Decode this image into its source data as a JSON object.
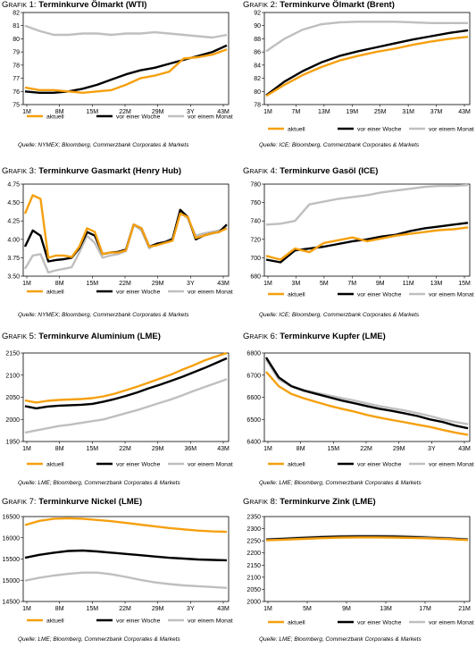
{
  "source_notes": [
    "Quelle: NYMEX; Bloomberg, Commerzbank Corporates & Markets",
    "Quelle: ICE; Bloomberg, Commerzbank Corporates & Markets",
    "Quelle: NYMEX; Bloomberg, Commerzbank Corporates & Markets",
    "Quelle: ICE; Bloomberg, Commerzbank Corporates & Markets",
    "Quelle: LME; Bloomberg, Commerzbank Corporates & Markets",
    "Quelle: LME; Bloomberg, Commerzbank Corporates & Markets",
    "Quelle: LME; Bloomberg, Commerzbank Corporates & Markets",
    "Quelle: LME; Bloomberg, Commerzbank Corporates & Markets"
  ],
  "colors": {
    "aktuell": "#f5a00f",
    "vor einer Woche": "#000000",
    "vor einem Monat": "#bfbfbf"
  },
  "chart_data": [
    {
      "type": "line",
      "prefix": "Grafik 1:",
      "title": "Terminkurve Ölmarkt (WTI)",
      "ylim": [
        75,
        82
      ],
      "yticks": [
        75,
        76,
        77,
        78,
        79,
        80,
        81,
        82
      ],
      "xlabels": [
        "1M",
        "8M",
        "15M",
        "22M",
        "29M",
        "3Y",
        "43M"
      ],
      "legend": "bottom",
      "series": [
        {
          "name": "aktuell",
          "values": [
            76.3,
            76.1,
            76.1,
            76.0,
            75.9,
            76.0,
            76.1,
            76.5,
            77.0,
            77.2,
            77.5,
            78.5,
            78.6,
            78.8,
            79.2
          ]
        },
        {
          "name": "vor einer Woche",
          "values": [
            76.0,
            75.9,
            75.9,
            76.0,
            76.2,
            76.5,
            76.9,
            77.3,
            77.6,
            77.8,
            78.1,
            78.4,
            78.7,
            79.0,
            79.5
          ]
        },
        {
          "name": "vor einem Monat",
          "values": [
            81.0,
            80.6,
            80.3,
            80.3,
            80.4,
            80.4,
            80.3,
            80.4,
            80.4,
            80.5,
            80.4,
            80.3,
            80.2,
            80.1,
            80.3
          ]
        }
      ]
    },
    {
      "type": "line",
      "prefix": "Grafik 2:",
      "title": "Terminkurve Ölmarkt (Brent)",
      "ylim": [
        78,
        92
      ],
      "yticks": [
        78,
        80,
        82,
        84,
        86,
        88,
        90,
        92
      ],
      "xlabels": [
        "1M",
        "7M",
        "13M",
        "19M",
        "25M",
        "31M",
        "37M",
        "43M"
      ],
      "legend": "bottom",
      "series": [
        {
          "name": "aktuell",
          "values": [
            79.3,
            81.0,
            82.5,
            83.7,
            84.7,
            85.4,
            86.0,
            86.5,
            87.1,
            87.6,
            88.0,
            88.3
          ]
        },
        {
          "name": "vor einer Woche",
          "values": [
            79.4,
            81.5,
            83.1,
            84.4,
            85.4,
            86.1,
            86.7,
            87.3,
            87.9,
            88.4,
            88.9,
            89.3
          ]
        },
        {
          "name": "vor einem Monat",
          "values": [
            86.1,
            88.0,
            89.4,
            90.2,
            90.5,
            90.6,
            90.6,
            90.6,
            90.5,
            90.4,
            90.4,
            90.4
          ]
        }
      ]
    },
    {
      "type": "line",
      "prefix": "Grafik 3:",
      "title": "Terminkurve Gasmarkt (Henry Hub)",
      "ylim": [
        3.5,
        4.75
      ],
      "yticks": [
        3.5,
        3.75,
        4.0,
        4.25,
        4.5,
        4.75
      ],
      "yformat": 2,
      "xlabels": [
        "1M",
        "8M",
        "15M",
        "22M",
        "29M",
        "3Y",
        "43M"
      ],
      "legend": "bottom",
      "series": [
        {
          "name": "aktuell",
          "values": [
            4.35,
            4.6,
            4.55,
            3.75,
            3.78,
            3.78,
            3.76,
            3.9,
            4.15,
            4.1,
            3.8,
            3.82,
            3.82,
            3.85,
            4.2,
            4.15,
            3.9,
            3.92,
            3.95,
            3.98,
            4.35,
            4.3,
            4.02,
            4.05,
            4.08,
            4.1,
            4.15
          ]
        },
        {
          "name": "vor einer Woche",
          "values": [
            3.9,
            4.12,
            4.05,
            3.7,
            3.72,
            3.73,
            3.75,
            3.88,
            4.1,
            4.05,
            3.8,
            3.82,
            3.83,
            3.86,
            4.2,
            4.15,
            3.9,
            3.94,
            3.96,
            4.0,
            4.4,
            4.3,
            4.0,
            4.05,
            4.08,
            4.1,
            4.2
          ]
        },
        {
          "name": "vor einem Monat",
          "values": [
            3.6,
            3.78,
            3.8,
            3.55,
            3.58,
            3.6,
            3.62,
            3.82,
            4.05,
            3.95,
            3.75,
            3.78,
            3.8,
            3.84,
            4.2,
            4.12,
            3.88,
            3.94,
            3.97,
            4.02,
            4.38,
            4.28,
            4.05,
            4.08,
            4.1,
            4.12,
            4.15
          ]
        }
      ]
    },
    {
      "type": "line",
      "prefix": "Grafik 4:",
      "title": "Terminkurve Gasöl (ICE)",
      "ylim": [
        680,
        780
      ],
      "yticks": [
        680,
        700,
        720,
        740,
        760,
        780
      ],
      "xlabels": [
        "1M",
        "3M",
        "5M",
        "7M",
        "9M",
        "11M",
        "13M",
        "15M"
      ],
      "legend": "bottom",
      "series": [
        {
          "name": "aktuell",
          "values": [
            702,
            698,
            710,
            706,
            716,
            719,
            722,
            718,
            721,
            724,
            726,
            728,
            730,
            731,
            733
          ]
        },
        {
          "name": "vor einer Woche",
          "values": [
            698,
            695,
            708,
            710,
            712,
            715,
            718,
            720,
            723,
            725,
            729,
            732,
            734,
            736,
            738
          ]
        },
        {
          "name": "vor einem Monat",
          "values": [
            736,
            737,
            740,
            758,
            761,
            764,
            766,
            768,
            771,
            773,
            775,
            777,
            778,
            778,
            779
          ]
        }
      ]
    },
    {
      "type": "line",
      "prefix": "Grafik 5:",
      "title": "Terminkurve Aluminium (LME)",
      "ylim": [
        1950,
        2150
      ],
      "yticks": [
        1950,
        2000,
        2050,
        2100,
        2150
      ],
      "xlabels": [
        "1M",
        "8M",
        "15M",
        "22M",
        "29M",
        "36M",
        "43M"
      ],
      "legend": "bottom",
      "series": [
        {
          "name": "aktuell",
          "values": [
            2043,
            2038,
            2042,
            2044,
            2045,
            2046,
            2048,
            2052,
            2058,
            2066,
            2074,
            2083,
            2092,
            2101,
            2112,
            2122,
            2133,
            2142,
            2150
          ]
        },
        {
          "name": "vor einer Woche",
          "values": [
            2030,
            2025,
            2029,
            2031,
            2032,
            2033,
            2035,
            2040,
            2046,
            2053,
            2061,
            2070,
            2078,
            2087,
            2096,
            2106,
            2116,
            2127,
            2138
          ]
        },
        {
          "name": "vor einem Monat",
          "values": [
            1970,
            1975,
            1980,
            1985,
            1988,
            1992,
            1996,
            2000,
            2007,
            2014,
            2021,
            2029,
            2037,
            2045,
            2054,
            2064,
            2073,
            2082,
            2091
          ]
        }
      ]
    },
    {
      "type": "line",
      "prefix": "Grafik 6:",
      "title": "Terminkurve Kupfer (LME)",
      "ylim": [
        6400,
        6800
      ],
      "yticks": [
        6400,
        6500,
        6600,
        6700,
        6800
      ],
      "xlabels": [
        "1M",
        "8M",
        "15M",
        "22M",
        "29M",
        "3Y",
        "43M"
      ],
      "legend": "bottom",
      "series": [
        {
          "name": "aktuell",
          "values": [
            6715,
            6650,
            6615,
            6595,
            6578,
            6562,
            6548,
            6535,
            6520,
            6508,
            6497,
            6487,
            6476,
            6466,
            6452,
            6440,
            6430
          ]
        },
        {
          "name": "vor einer Woche",
          "values": [
            6780,
            6690,
            6650,
            6630,
            6615,
            6600,
            6585,
            6573,
            6560,
            6548,
            6538,
            6527,
            6515,
            6500,
            6488,
            6472,
            6460
          ]
        },
        {
          "name": "vor einem Monat",
          "values": [
            6770,
            6680,
            6650,
            6633,
            6620,
            6608,
            6596,
            6585,
            6572,
            6560,
            6550,
            6540,
            6528,
            6515,
            6500,
            6488,
            6478
          ]
        }
      ]
    },
    {
      "type": "line",
      "prefix": "Grafik 7:",
      "title": "Terminkurve Nickel (LME)",
      "ylim": [
        14500,
        16500
      ],
      "yticks": [
        14500,
        15000,
        15500,
        16000,
        16500
      ],
      "xlabels": [
        "1M",
        "8M",
        "15M",
        "22M",
        "29M",
        "3Y",
        "43M"
      ],
      "legend": "bottom",
      "series": [
        {
          "name": "aktuell",
          "values": [
            16300,
            16400,
            16450,
            16460,
            16450,
            16420,
            16390,
            16350,
            16310,
            16270,
            16230,
            16200,
            16170,
            16150,
            16140
          ]
        },
        {
          "name": "vor einer Woche",
          "values": [
            15530,
            15600,
            15650,
            15690,
            15700,
            15680,
            15650,
            15620,
            15590,
            15560,
            15530,
            15510,
            15490,
            15480,
            15470
          ]
        },
        {
          "name": "vor einem Monat",
          "values": [
            14990,
            15060,
            15110,
            15150,
            15180,
            15180,
            15140,
            15080,
            15010,
            14950,
            14910,
            14880,
            14860,
            14840,
            14820
          ]
        }
      ]
    },
    {
      "type": "line",
      "prefix": "Grafik 8:",
      "title": "Terminkurve Zink (LME)",
      "ylim": [
        2000,
        2350
      ],
      "yticks": [
        2000,
        2050,
        2100,
        2150,
        2200,
        2250,
        2300,
        2350
      ],
      "xlabels": [
        "1M",
        "5M",
        "9M",
        "13M",
        "17M",
        "21M"
      ],
      "legend": "bottom",
      "series": [
        {
          "name": "aktuell",
          "values": [
            2252,
            2255,
            2258,
            2261,
            2263,
            2264,
            2264,
            2263,
            2262,
            2260,
            2257,
            2253
          ]
        },
        {
          "name": "vor einer Woche",
          "values": [
            2255,
            2258,
            2262,
            2265,
            2267,
            2268,
            2268,
            2267,
            2265,
            2262,
            2259,
            2255
          ]
        },
        {
          "name": "vor einem Monat",
          "values": [
            2257,
            2261,
            2265,
            2268,
            2270,
            2272,
            2272,
            2271,
            2269,
            2266,
            2262,
            2257
          ]
        }
      ]
    }
  ]
}
